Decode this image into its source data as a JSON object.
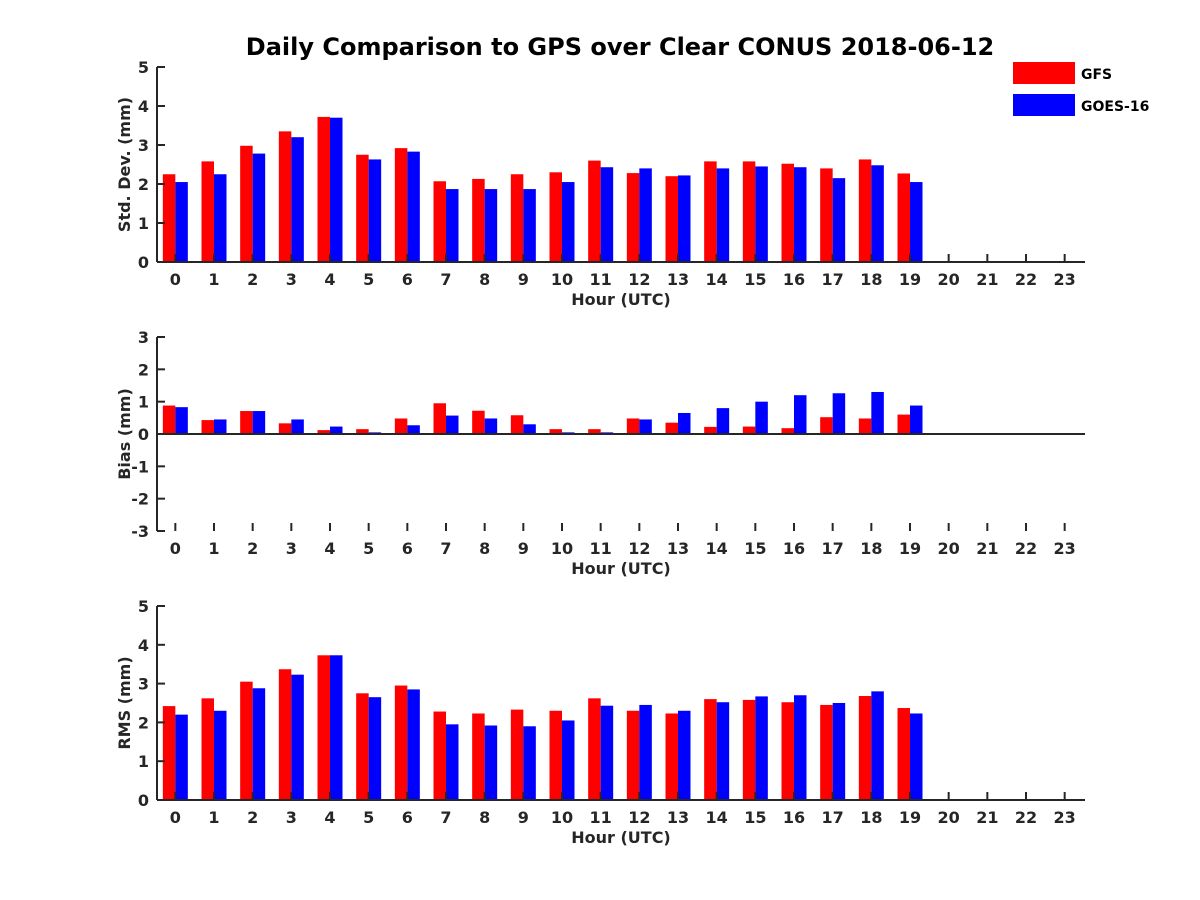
{
  "title": "Daily Comparison to GPS over Clear CONUS 2018-06-12",
  "legend": [
    {
      "name": "GFS",
      "color": "#ff0000"
    },
    {
      "name": "GOES-16",
      "color": "#0000ff"
    }
  ],
  "chart_data": [
    {
      "type": "bar",
      "ylabel": "Std. Dev. (mm)",
      "xlabel": "Hour (UTC)",
      "ylim": [
        0,
        5
      ],
      "yticks": [
        "0",
        "1",
        "2",
        "3",
        "4",
        "5"
      ],
      "categories": [
        "0",
        "1",
        "2",
        "3",
        "4",
        "5",
        "6",
        "7",
        "8",
        "9",
        "10",
        "11",
        "12",
        "13",
        "14",
        "15",
        "16",
        "17",
        "18",
        "19",
        "20",
        "21",
        "22",
        "23"
      ],
      "series": [
        {
          "name": "GFS",
          "values": [
            2.25,
            2.58,
            2.98,
            3.35,
            3.72,
            2.75,
            2.92,
            2.07,
            2.13,
            2.25,
            2.3,
            2.6,
            2.28,
            2.2,
            2.58,
            2.58,
            2.52,
            2.4,
            2.63,
            2.27,
            null,
            null,
            null,
            null
          ]
        },
        {
          "name": "GOES-16",
          "values": [
            2.05,
            2.25,
            2.78,
            3.2,
            3.7,
            2.63,
            2.83,
            1.87,
            1.87,
            1.87,
            2.05,
            2.43,
            2.4,
            2.22,
            2.4,
            2.45,
            2.43,
            2.15,
            2.48,
            2.05,
            null,
            null,
            null,
            null
          ]
        }
      ]
    },
    {
      "type": "bar",
      "ylabel": "Bias (mm)",
      "xlabel": "Hour (UTC)",
      "ylim": [
        -3,
        3
      ],
      "yticks": [
        "-3",
        "-2",
        "-1",
        "0",
        "1",
        "2",
        "3"
      ],
      "categories": [
        "0",
        "1",
        "2",
        "3",
        "4",
        "5",
        "6",
        "7",
        "8",
        "9",
        "10",
        "11",
        "12",
        "13",
        "14",
        "15",
        "16",
        "17",
        "18",
        "19",
        "20",
        "21",
        "22",
        "23"
      ],
      "series": [
        {
          "name": "GFS",
          "values": [
            0.88,
            0.43,
            0.71,
            0.33,
            0.12,
            0.15,
            0.48,
            0.95,
            0.72,
            0.58,
            0.15,
            0.15,
            0.48,
            0.35,
            0.22,
            0.23,
            0.18,
            0.52,
            0.48,
            0.6,
            null,
            null,
            null,
            null
          ]
        },
        {
          "name": "GOES-16",
          "values": [
            0.83,
            0.45,
            0.71,
            0.45,
            0.23,
            0.05,
            0.27,
            0.57,
            0.48,
            0.3,
            0.05,
            0.05,
            0.45,
            0.65,
            0.8,
            1.0,
            1.2,
            1.26,
            1.3,
            0.88,
            null,
            null,
            null,
            null
          ]
        }
      ]
    },
    {
      "type": "bar",
      "ylabel": "RMS (mm)",
      "xlabel": "Hour (UTC)",
      "ylim": [
        0,
        5
      ],
      "yticks": [
        "0",
        "1",
        "2",
        "3",
        "4",
        "5"
      ],
      "categories": [
        "0",
        "1",
        "2",
        "3",
        "4",
        "5",
        "6",
        "7",
        "8",
        "9",
        "10",
        "11",
        "12",
        "13",
        "14",
        "15",
        "16",
        "17",
        "18",
        "19",
        "20",
        "21",
        "22",
        "23"
      ],
      "series": [
        {
          "name": "GFS",
          "values": [
            2.42,
            2.62,
            3.05,
            3.37,
            3.73,
            2.75,
            2.95,
            2.28,
            2.23,
            2.33,
            2.3,
            2.62,
            2.3,
            2.23,
            2.6,
            2.58,
            2.52,
            2.45,
            2.68,
            2.37,
            null,
            null,
            null,
            null
          ]
        },
        {
          "name": "GOES-16",
          "values": [
            2.2,
            2.3,
            2.88,
            3.23,
            3.73,
            2.65,
            2.85,
            1.95,
            1.92,
            1.9,
            2.05,
            2.43,
            2.45,
            2.3,
            2.52,
            2.67,
            2.7,
            2.5,
            2.8,
            2.23,
            null,
            null,
            null,
            null
          ]
        }
      ]
    }
  ]
}
